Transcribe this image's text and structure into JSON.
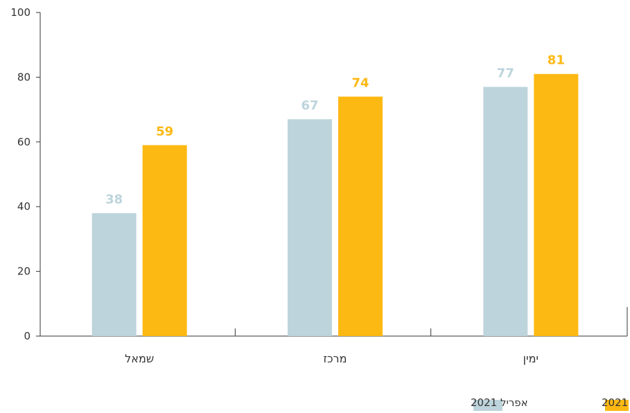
{
  "chart_data": {
    "type": "bar",
    "categories": [
      "שמאל",
      "מרכז",
      "ימין"
    ],
    "series": [
      {
        "name": "אפריל 2021",
        "values": [
          38,
          67,
          77
        ],
        "color": "#BDD4DC"
      },
      {
        "name": "אוגוסט 2021",
        "values": [
          59,
          74,
          81
        ],
        "color": "#FDB913"
      }
    ],
    "ylim": [
      0,
      100
    ],
    "yticks": [
      "0",
      "20",
      "40",
      "60",
      "80",
      "100"
    ],
    "grid": false,
    "legend_position": "bottom-right",
    "data_labels": true
  }
}
